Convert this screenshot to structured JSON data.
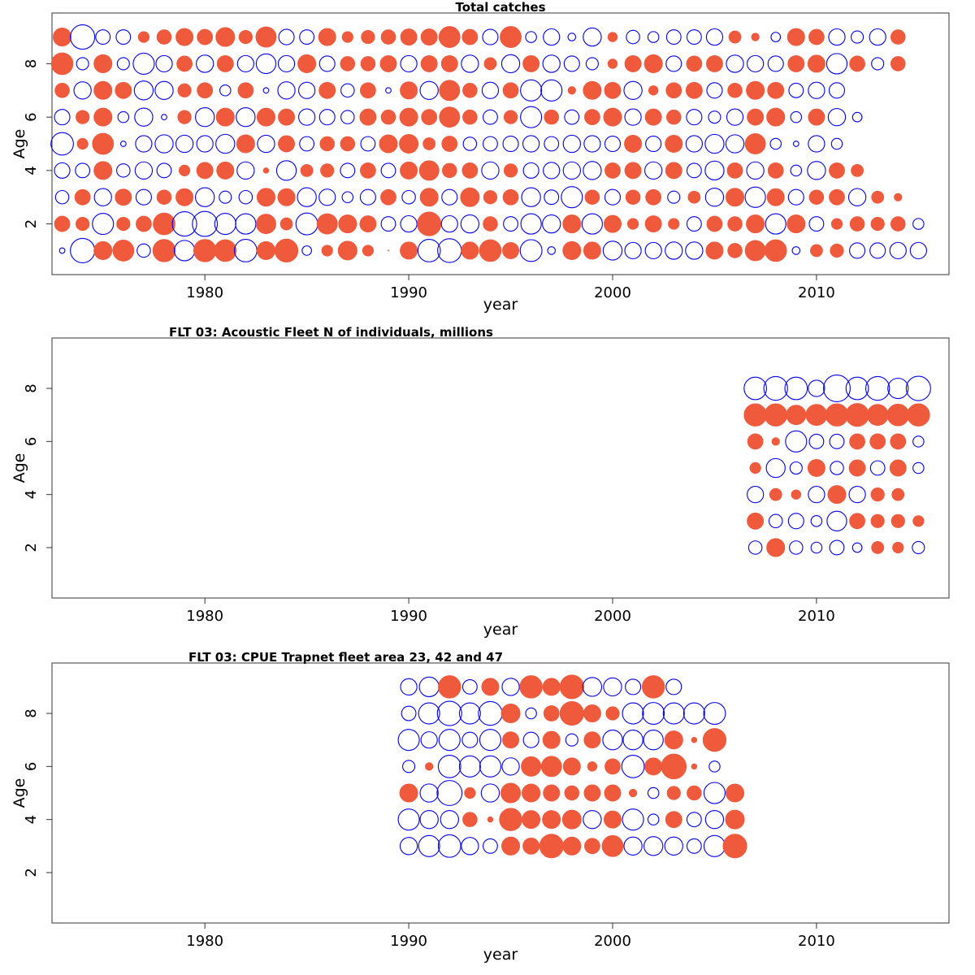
{
  "colors": {
    "positive": "#ef5a3c",
    "negative": "#0000ee",
    "frame": "#333333"
  },
  "chart_data": [
    {
      "type": "scatter",
      "subtype": "bubble",
      "title": "Total catches",
      "xlabel": "year",
      "ylabel": "Age",
      "xlim": [
        1972.5,
        2016.5
      ],
      "ylim": [
        0.1,
        9.9
      ],
      "xticks": [
        1980,
        1990,
        2000,
        2010
      ],
      "yticks": [
        2,
        4,
        6,
        8
      ],
      "x_start": 1973,
      "y_ages": [
        1,
        2,
        3,
        4,
        5,
        6,
        7,
        8,
        9
      ],
      "residuals": [
        [
          -0.05,
          -1.0,
          0.55,
          0.75,
          -0.3,
          0.85,
          -0.7,
          0.85,
          0.8,
          -0.85,
          0.55,
          0.9,
          -0.15,
          0.2,
          0.6,
          0.2,
          -0.0,
          0.5,
          -0.85,
          -0.95,
          0.5,
          0.8,
          0.45,
          -0.8,
          -0.1,
          0.55,
          0.5,
          -0.6,
          -0.45,
          -0.45,
          -0.5,
          -0.5,
          0.5,
          0.35,
          0.7,
          0.8,
          -0.1,
          0.25,
          0.3,
          -0.4,
          -0.4,
          -0.45,
          -0.45
        ],
        [
          0.4,
          0.3,
          -0.75,
          0.3,
          0.4,
          0.8,
          -1.0,
          -1.05,
          -0.75,
          -0.7,
          0.65,
          0.25,
          -0.8,
          0.7,
          0.55,
          0.45,
          -0.35,
          -0.45,
          0.95,
          -0.45,
          -0.55,
          0.35,
          -0.35,
          -0.7,
          -0.55,
          0.55,
          -0.7,
          0.5,
          0.2,
          0.45,
          0.2,
          -0.35,
          0.4,
          0.35,
          0.55,
          -0.7,
          0.55,
          -0.35,
          0.2,
          0.35,
          0.3,
          0.35,
          -0.2
        ],
        [
          -0.3,
          0.4,
          -0.5,
          0.45,
          -0.4,
          0.35,
          0.5,
          -0.6,
          -0.25,
          -0.3,
          0.55,
          0.5,
          -0.6,
          -0.45,
          -0.2,
          -0.4,
          0.4,
          -0.3,
          0.55,
          -0.4,
          0.6,
          0.3,
          0.4,
          -0.6,
          -0.35,
          -0.75,
          0.35,
          -0.4,
          0.35,
          0.4,
          -0.25,
          0.25,
          -0.55,
          0.55,
          -0.7,
          0.5,
          -0.4,
          0.35,
          0.4,
          -0.5,
          0.25,
          0.1
        ],
        [
          -0.4,
          -0.35,
          0.55,
          -0.3,
          -0.5,
          -0.35,
          0.2,
          0.45,
          0.5,
          -0.5,
          0.05,
          -0.65,
          0.25,
          0.3,
          -0.35,
          0.4,
          -0.35,
          0.5,
          0.65,
          0.35,
          0.4,
          -0.5,
          0.3,
          -0.4,
          -0.45,
          -0.5,
          -0.55,
          0.4,
          0.45,
          -0.5,
          0.45,
          -0.35,
          -0.6,
          0.4,
          -0.5,
          0.4,
          -0.2,
          -0.55,
          0.4,
          0.25
        ],
        [
          -0.85,
          0.2,
          0.75,
          -0.05,
          -0.45,
          -0.55,
          -0.5,
          -0.45,
          -0.6,
          0.55,
          -0.5,
          0.45,
          -0.35,
          0.35,
          0.35,
          -0.35,
          0.55,
          0.6,
          0.25,
          0.4,
          -0.3,
          -0.35,
          -0.4,
          -0.45,
          -0.35,
          -0.5,
          -0.45,
          -0.4,
          0.5,
          -0.4,
          0.5,
          -0.45,
          -0.6,
          -0.55,
          0.7,
          -0.2,
          -0.05,
          -0.45,
          -0.2
        ],
        [
          -0.4,
          0.3,
          0.55,
          -0.2,
          -0.55,
          -0.05,
          0.3,
          -0.6,
          0.55,
          -0.6,
          0.55,
          0.45,
          -0.45,
          -0.4,
          -0.3,
          0.45,
          0.35,
          0.55,
          0.4,
          0.7,
          0.35,
          -0.35,
          0.3,
          -0.75,
          0.35,
          -0.35,
          0.4,
          0.55,
          -0.45,
          0.45,
          0.35,
          -0.4,
          -0.25,
          -0.45,
          0.45,
          0.55,
          -0.2,
          0.45,
          -0.5,
          -0.15
        ],
        [
          0.35,
          -0.5,
          0.55,
          0.45,
          -0.6,
          -0.55,
          0.3,
          0.4,
          -0.2,
          0.4,
          -0.05,
          -0.5,
          -0.45,
          0.45,
          -0.3,
          0.4,
          -0.05,
          0.5,
          -0.55,
          0.7,
          0.35,
          -0.45,
          0.4,
          -0.75,
          -0.75,
          0.1,
          0.55,
          0.45,
          -0.55,
          0.15,
          0.4,
          0.45,
          -0.4,
          0.35,
          0.55,
          0.45,
          -0.35,
          -0.45,
          -0.4
        ],
        [
          0.8,
          -0.25,
          0.55,
          -0.25,
          -0.75,
          -0.45,
          0.4,
          -0.5,
          0.45,
          -0.45,
          -0.65,
          -0.45,
          0.55,
          -0.4,
          0.35,
          0.35,
          0.45,
          -0.45,
          0.45,
          0.45,
          -0.5,
          0.25,
          -0.55,
          0.45,
          -0.5,
          -0.4,
          -0.25,
          0.15,
          0.45,
          0.55,
          -0.4,
          0.4,
          0.45,
          -0.5,
          -0.45,
          -0.4,
          0.45,
          0.5,
          -0.7,
          0.4,
          -0.25,
          0.35
        ],
        [
          0.55,
          -1.0,
          -0.35,
          -0.35,
          0.2,
          0.35,
          0.5,
          0.4,
          0.6,
          0.3,
          0.7,
          -0.4,
          -0.35,
          0.5,
          0.2,
          0.3,
          0.35,
          0.45,
          0.45,
          0.75,
          0.4,
          -0.4,
          0.75,
          -0.2,
          -0.45,
          -0.1,
          -0.55,
          0.15,
          -0.3,
          -0.2,
          -0.35,
          -0.35,
          -0.45,
          0.25,
          0.1,
          -0.15,
          0.5,
          0.4,
          -0.45,
          -0.25,
          -0.45,
          0.35
        ]
      ]
    },
    {
      "type": "scatter",
      "subtype": "bubble",
      "title": "FLT 03: Acoustic Fleet   N of individuals, millions",
      "xlabel": "year",
      "ylabel": "Age",
      "xlim": [
        1972.5,
        2016.5
      ],
      "ylim": [
        0.1,
        9.9
      ],
      "xticks": [
        1980,
        1990,
        2000,
        2010
      ],
      "yticks": [
        2,
        4,
        6,
        8
      ],
      "x_start": 2007,
      "y_ages": [
        2,
        3,
        4,
        5,
        6,
        7,
        8
      ],
      "residuals": [
        [
          -0.3,
          0.55,
          -0.3,
          -0.2,
          -0.35,
          -0.15,
          0.25,
          0.2,
          -0.25
        ],
        [
          0.45,
          -0.3,
          -0.4,
          -0.2,
          -0.65,
          0.4,
          0.3,
          0.3,
          0.2
        ],
        [
          -0.45,
          0.25,
          0.15,
          -0.45,
          0.55,
          -0.45,
          0.3,
          0.25
        ],
        [
          0.2,
          -0.6,
          -0.25,
          0.5,
          -0.3,
          0.45,
          -0.35,
          0.45,
          -0.2
        ],
        [
          0.4,
          0.1,
          -0.75,
          -0.35,
          -0.35,
          0.4,
          0.4,
          0.4,
          -0.2
        ],
        [
          0.85,
          0.85,
          0.65,
          0.75,
          0.85,
          0.9,
          0.75,
          0.8,
          0.85
        ],
        [
          -0.85,
          -0.95,
          -0.85,
          -0.45,
          -1.2,
          -0.85,
          -0.95,
          -0.7,
          -1.0
        ]
      ]
    },
    {
      "type": "scatter",
      "subtype": "bubble",
      "title": "FLT 03: CPUE Trapnet fleet area 23, 42 and 47",
      "xlabel": "year",
      "ylabel": "Age",
      "xlim": [
        1972.5,
        2016.5
      ],
      "ylim": [
        0.1,
        9.9
      ],
      "xticks": [
        1980,
        1990,
        2000,
        2010
      ],
      "yticks": [
        2,
        4,
        6,
        8
      ],
      "x_start": 1990,
      "y_ages": [
        3,
        4,
        5,
        6,
        7,
        8,
        9
      ],
      "residuals": [
        [
          -0.5,
          -0.75,
          -0.85,
          -0.5,
          -0.35,
          0.55,
          0.45,
          0.95,
          0.55,
          0.4,
          0.75,
          -0.55,
          -0.6,
          -0.55,
          -0.35,
          -0.75,
          0.95
        ],
        [
          -0.75,
          -0.55,
          -0.55,
          0.35,
          0.05,
          0.85,
          0.55,
          0.55,
          0.6,
          -0.55,
          0.5,
          -0.75,
          -0.2,
          0.45,
          -0.35,
          -0.55,
          0.6
        ],
        [
          0.55,
          -0.55,
          -1.05,
          0.2,
          -0.55,
          0.65,
          0.55,
          0.45,
          0.35,
          0.45,
          0.45,
          0.1,
          -0.2,
          0.3,
          0.35,
          -0.75,
          0.55
        ],
        [
          -0.25,
          0.1,
          -0.85,
          -0.75,
          -0.75,
          -0.5,
          0.65,
          0.7,
          0.5,
          0.15,
          0.4,
          -0.85,
          0.5,
          1.05,
          0.05,
          -0.2
        ],
        [
          -0.75,
          -0.45,
          -0.75,
          -0.4,
          -0.75,
          0.45,
          -0.4,
          0.5,
          -0.25,
          0.45,
          -0.65,
          -0.65,
          -0.65,
          0.55,
          0.05,
          0.9
        ],
        [
          -0.35,
          -0.75,
          -1.0,
          -0.75,
          -0.95,
          0.6,
          -0.2,
          0.4,
          0.95,
          0.5,
          0.3,
          -0.75,
          -0.8,
          -0.75,
          -0.75,
          -0.8
        ],
        [
          -0.45,
          -0.65,
          0.85,
          -0.35,
          0.5,
          -0.5,
          0.85,
          0.5,
          0.95,
          -0.6,
          -0.55,
          -0.4,
          0.85,
          -0.4
        ]
      ]
    }
  ]
}
